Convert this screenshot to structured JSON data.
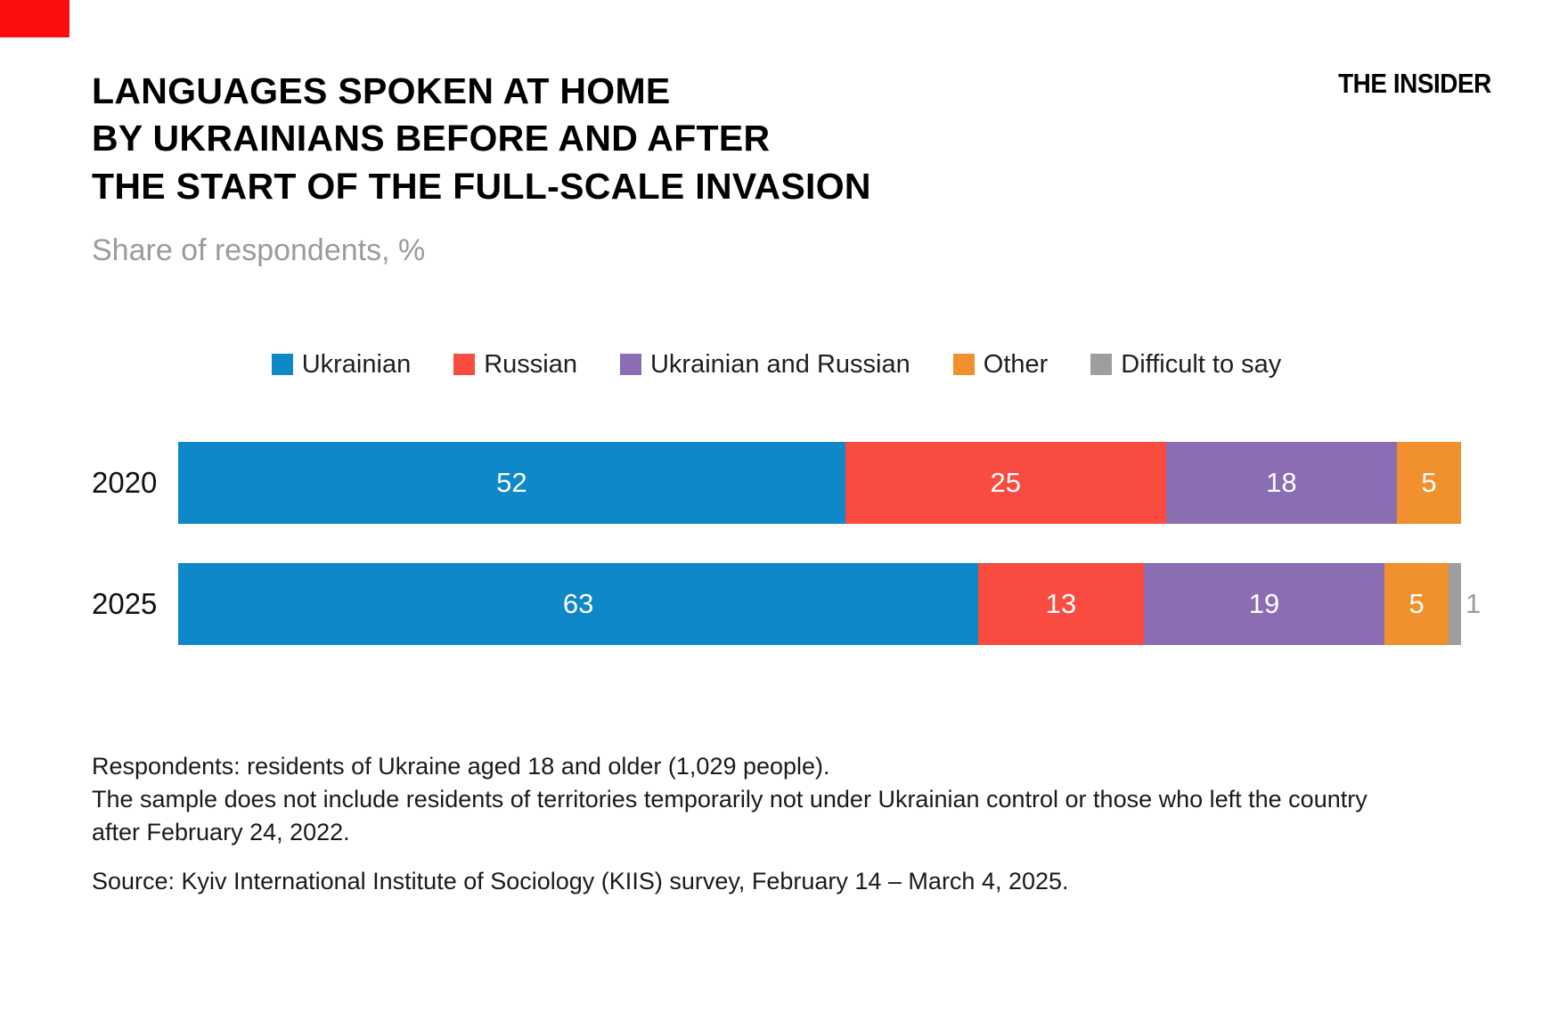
{
  "page": {
    "brand": "THE INSIDER",
    "title_lines": [
      "LANGUAGES SPOKEN AT HOME",
      "BY UKRAINIANS BEFORE AND AFTER",
      "THE START OF THE FULL-SCALE INVASION"
    ],
    "subtitle": "Share of respondents, %"
  },
  "colors": {
    "corner_red": "#fb0d0d",
    "ukrainian_blue": "#0f88c9",
    "russian_red": "#fa4b40",
    "mixed_purple": "#8b6db3",
    "other_orange": "#f0912d",
    "difficult_gray": "#9e9e9e",
    "subtitle_gray": "#9b9b9b"
  },
  "chart_data": {
    "type": "bar",
    "orientation": "horizontal-stacked",
    "title": "Languages spoken at home by Ukrainians before and after the start of the full-scale invasion",
    "subtitle": "Share of respondents, %",
    "unit": "%",
    "legend_position": "top",
    "grid": false,
    "value_label_inside_threshold": 3,
    "categories": [
      "2020",
      "2025"
    ],
    "series": [
      {
        "name": "Ukrainian",
        "color": "#0f88c9",
        "values": [
          52,
          63
        ]
      },
      {
        "name": "Russian",
        "color": "#fa4b40",
        "values": [
          25,
          13
        ]
      },
      {
        "name": "Ukrainian and Russian",
        "color": "#8b6db3",
        "values": [
          18,
          19
        ]
      },
      {
        "name": "Other",
        "color": "#f0912d",
        "values": [
          5,
          5
        ]
      },
      {
        "name": "Difficult to say",
        "color": "#9e9e9e",
        "values": [
          0,
          1
        ]
      }
    ]
  },
  "footnotes": [
    "Respondents: residents of Ukraine aged 18 and older (1,029 people).",
    "The sample does not include residents of territories temporarily not under Ukrainian control or those who left the country after February 24, 2022."
  ],
  "source": "Source: Kyiv International Institute of Sociology (KIIS) survey, February 14 – March 4, 2025."
}
